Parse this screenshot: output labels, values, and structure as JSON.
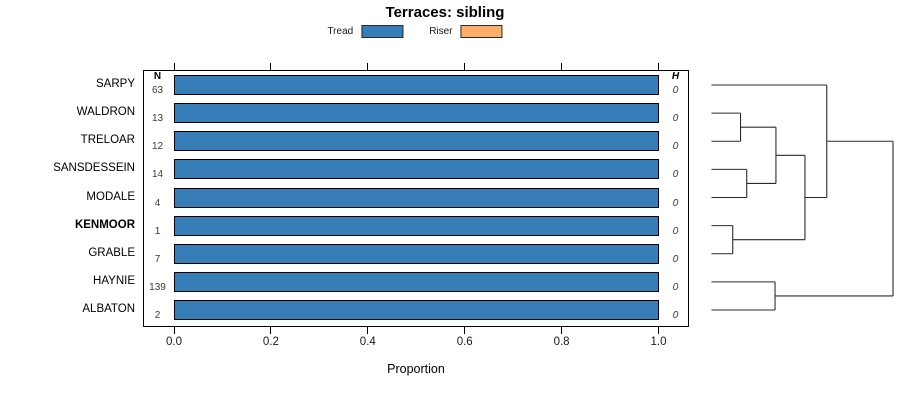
{
  "title": "Terraces: sibling",
  "legend": {
    "items": [
      {
        "label": "Tread",
        "color": "#377EB8"
      },
      {
        "label": "Riser",
        "color": "#FDAE6B"
      }
    ]
  },
  "chart_data": {
    "type": "bar",
    "orientation": "horizontal",
    "title": "Terraces: sibling",
    "xlabel": "Proportion",
    "xlim": [
      0,
      1.05
    ],
    "xticks": [
      "0.0",
      "0.2",
      "0.4",
      "0.6",
      "0.8",
      "1.0"
    ],
    "grid": false,
    "legend_position": "top",
    "categories": [
      "SARPY",
      "WALDRON",
      "TRELOAR",
      "SANSDESSEIN",
      "MODALE",
      "KENMOOR",
      "GRABLE",
      "HAYNIE",
      "ALBATON"
    ],
    "emphasized_category": "KENMOOR",
    "series": [
      {
        "name": "Tread",
        "color": "#377EB8",
        "values": [
          1.0,
          1.0,
          1.0,
          1.0,
          1.0,
          1.0,
          1.0,
          1.0,
          1.0
        ]
      },
      {
        "name": "Riser",
        "color": "#FDAE6B",
        "values": [
          0,
          0,
          0,
          0,
          0,
          0,
          0,
          0,
          0
        ]
      }
    ],
    "sample_counts": {
      "header": "N",
      "values": [
        63,
        13,
        12,
        14,
        4,
        1,
        7,
        139,
        2
      ]
    },
    "h_column": {
      "header": "H",
      "values": [
        0,
        0,
        0,
        0,
        0,
        0,
        0,
        0,
        0
      ]
    },
    "dendrogram": {
      "leaf_order": [
        "SARPY",
        "WALDRON",
        "TRELOAR",
        "SANSDESSEIN",
        "MODALE",
        "KENMOOR",
        "GRABLE",
        "HAYNIE",
        "ALBATON"
      ],
      "merges": [
        {
          "left": "KENMOOR",
          "right": "GRABLE",
          "height": 0.117
        },
        {
          "left": "WALDRON",
          "right": "TRELOAR",
          "height": 0.16
        },
        {
          "left": "SANSDESSEIN",
          "right": "MODALE",
          "height": 0.194
        },
        {
          "left": "#1",
          "right": "#2",
          "height": 0.355
        },
        {
          "left": "HAYNIE",
          "right": "ALBATON",
          "height": 0.35
        },
        {
          "left": "#3",
          "right": "#0",
          "height": 0.515
        },
        {
          "left": "SARPY",
          "right": "#5",
          "height": 0.635
        },
        {
          "left": "#6",
          "right": "#4",
          "height": 1.0
        }
      ]
    }
  }
}
